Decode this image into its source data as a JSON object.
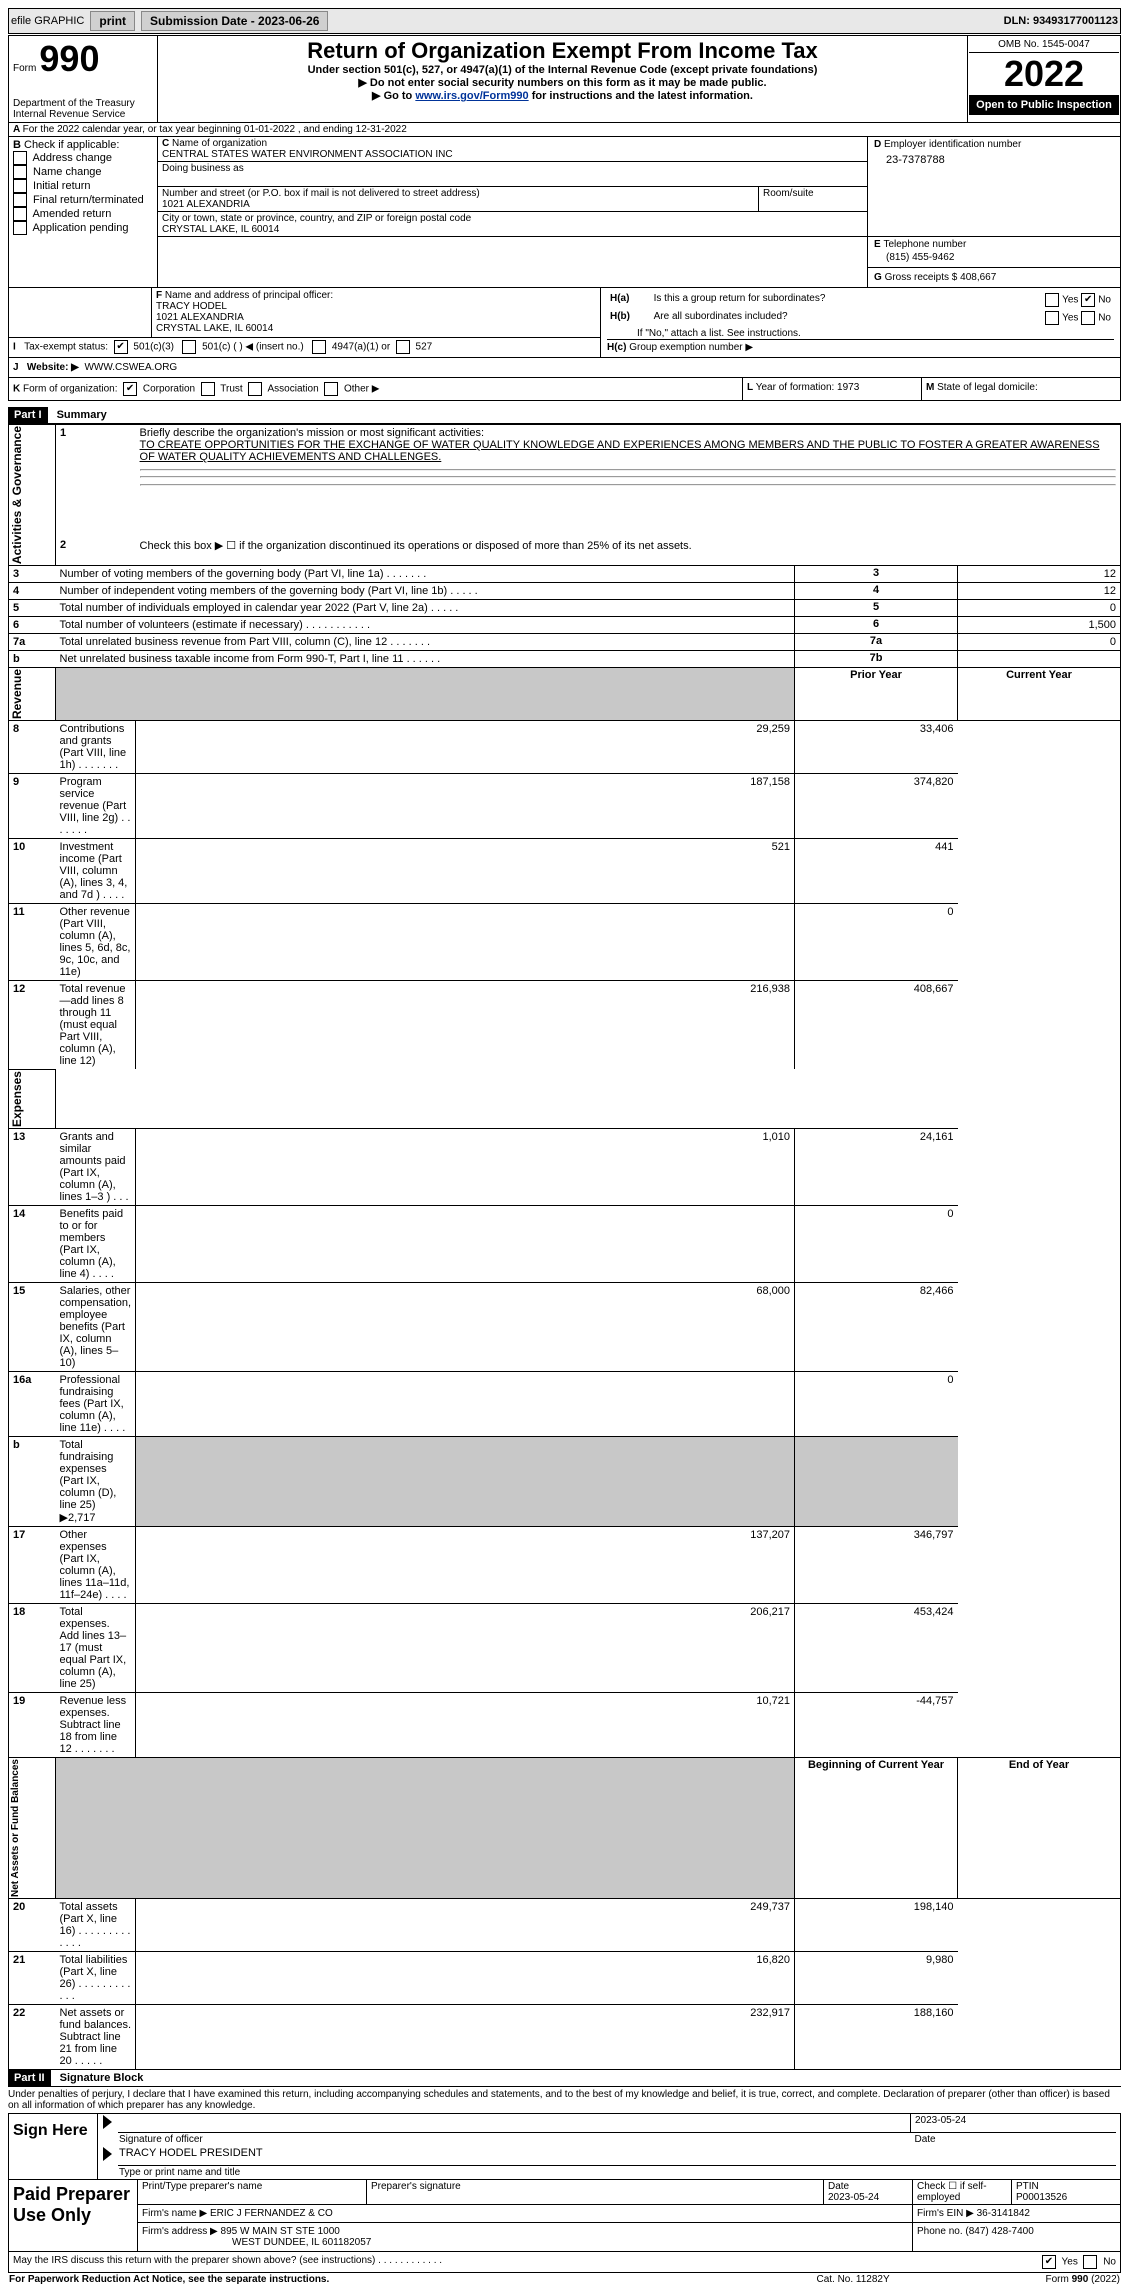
{
  "topbar": {
    "efile": "efile GRAPHIC",
    "print": "print",
    "sub_label": "Submission Date - 2023-06-26",
    "dln": "DLN: 93493177001123"
  },
  "header": {
    "form_small": "Form",
    "form_big": "990",
    "dept": "Department of the Treasury\nInternal Revenue Service",
    "title": "Return of Organization Exempt From Income Tax",
    "subtitle": "Under section 501(c), 527, or 4947(a)(1) of the Internal Revenue Code (except private foundations)",
    "warn": "Do not enter social security numbers on this form as it may be made public.",
    "goto_pre": "Go to ",
    "goto_link": "www.irs.gov/Form990",
    "goto_post": " for instructions and the latest information.",
    "omb": "OMB No. 1545-0047",
    "year": "2022",
    "open": "Open to Public Inspection"
  },
  "sectionA": {
    "for_year": "For the 2022 calendar year, or tax year beginning 01-01-2022    , and ending 12-31-2022",
    "check_label": "Check if applicable:",
    "checks": [
      "Address change",
      "Name change",
      "Initial return",
      "Final return/terminated",
      "Amended return",
      "Application pending"
    ],
    "c_name_lbl": "Name of organization",
    "c_name": "CENTRAL STATES WATER ENVIRONMENT ASSOCIATION INC",
    "dba_lbl": "Doing business as",
    "street_lbl": "Number and street (or P.O. box if mail is not delivered to street address)",
    "street": "1021 ALEXANDRIA",
    "room_lbl": "Room/suite",
    "city_lbl": "City or town, state or province, country, and ZIP or foreign postal code",
    "city": "CRYSTAL LAKE, IL  60014",
    "ein_lbl": "Employer identification number",
    "ein": "23-7378788",
    "phone_lbl": "Telephone number",
    "phone": "(815) 455-9462",
    "gross_lbl": "Gross receipts $",
    "gross": "408,667",
    "officer_lbl": "Name and address of principal officer:",
    "officer_name": "TRACY HODEL",
    "officer_addr1": "1021 ALEXANDRIA",
    "officer_addr2": "CRYSTAL LAKE, IL  60014",
    "ha_lbl": "Is this a group return for subordinates?",
    "hb_lbl": "Are all subordinates included?",
    "h_note": "If \"No,\" attach a list. See instructions.",
    "hc_lbl": "Group exemption number ▶",
    "yes": "Yes",
    "no": "No",
    "tax_status_lbl": "Tax-exempt status:",
    "s501c3": "501(c)(3)",
    "s501c": "501(c) (   ) ◀ (insert no.)",
    "s4947": "4947(a)(1) or",
    "s527": "527",
    "website_lbl": "Website: ▶",
    "website": "WWW.CSWEA.ORG",
    "form_of_org_lbl": "Form of organization:",
    "corp": "Corporation",
    "trust": "Trust",
    "assoc": "Association",
    "other": "Other ▶",
    "year_form_lbl": "Year of formation: 1973",
    "state_lbl": "State of legal domicile:"
  },
  "part1": {
    "part": "Part I",
    "title": "Summary",
    "line1_lbl": "Briefly describe the organization's mission or most significant activities:",
    "line1_text": "TO CREATE OPPORTUNITIES FOR THE EXCHANGE OF WATER QUALITY KNOWLEDGE AND EXPERIENCES AMONG MEMBERS AND THE PUBLIC TO FOSTER A GREATER AWARENESS OF WATER QUALITY ACHIEVEMENTS AND CHALLENGES.",
    "line2_lbl": "Check this box ▶ ☐ if the organization discontinued its operations or disposed of more than 25% of its net assets.",
    "rot_ag": "Activities & Governance",
    "rot_rev": "Revenue",
    "rot_exp": "Expenses",
    "rot_net": "Net Assets or Fund Balances",
    "rows_ag": [
      {
        "n": "3",
        "lbl": "Number of voting members of the governing body (Part VI, line 1a)   .   .   .   .   .   .   .",
        "box": "3",
        "v": "12"
      },
      {
        "n": "4",
        "lbl": "Number of independent voting members of the governing body (Part VI, line 1b)   .   .   .   .   .",
        "box": "4",
        "v": "12"
      },
      {
        "n": "5",
        "lbl": "Total number of individuals employed in calendar year 2022 (Part V, line 2a)   .   .   .   .   .",
        "box": "5",
        "v": "0"
      },
      {
        "n": "6",
        "lbl": "Total number of volunteers (estimate if necessary)    .   .   .   .   .   .   .   .   .   .   .",
        "box": "6",
        "v": "1,500"
      },
      {
        "n": "7a",
        "lbl": "Total unrelated business revenue from Part VIII, column (C), line 12   .   .   .   .   .   .   .",
        "box": "7a",
        "v": "0"
      },
      {
        "n": "b",
        "lbl": "Net unrelated business taxable income from Form 990-T, Part I, line 11   .   .   .   .   .   .",
        "box": "7b",
        "v": ""
      }
    ],
    "prior_hdr": "Prior Year",
    "current_hdr": "Current Year",
    "rows_rev": [
      {
        "n": "8",
        "lbl": "Contributions and grants (Part VIII, line 1h)   .   .   .   .   .   .   .",
        "p": "29,259",
        "c": "33,406"
      },
      {
        "n": "9",
        "lbl": "Program service revenue (Part VIII, line 2g)   .   .   .   .   .   .   .",
        "p": "187,158",
        "c": "374,820"
      },
      {
        "n": "10",
        "lbl": "Investment income (Part VIII, column (A), lines 3, 4, and 7d )   .   .   .   .",
        "p": "521",
        "c": "441"
      },
      {
        "n": "11",
        "lbl": "Other revenue (Part VIII, column (A), lines 5, 6d, 8c, 9c, 10c, and 11e)",
        "p": "",
        "c": "0"
      },
      {
        "n": "12",
        "lbl": "Total revenue—add lines 8 through 11 (must equal Part VIII, column (A), line 12)",
        "p": "216,938",
        "c": "408,667"
      }
    ],
    "rows_exp": [
      {
        "n": "13",
        "lbl": "Grants and similar amounts paid (Part IX, column (A), lines 1–3 )   .   .   .",
        "p": "1,010",
        "c": "24,161"
      },
      {
        "n": "14",
        "lbl": "Benefits paid to or for members (Part IX, column (A), line 4)   .   .   .   .",
        "p": "",
        "c": "0"
      },
      {
        "n": "15",
        "lbl": "Salaries, other compensation, employee benefits (Part IX, column (A), lines 5–10)",
        "p": "68,000",
        "c": "82,466"
      },
      {
        "n": "16a",
        "lbl": "Professional fundraising fees (Part IX, column (A), line 11e)   .   .   .   .",
        "p": "",
        "c": "0"
      },
      {
        "n": "b",
        "lbl": "Total fundraising expenses (Part IX, column (D), line 25) ▶2,717",
        "p": "GREY",
        "c": "GREY"
      },
      {
        "n": "17",
        "lbl": "Other expenses (Part IX, column (A), lines 11a–11d, 11f–24e)   .   .   .   .",
        "p": "137,207",
        "c": "346,797"
      },
      {
        "n": "18",
        "lbl": "Total expenses. Add lines 13–17 (must equal Part IX, column (A), line 25)",
        "p": "206,217",
        "c": "453,424"
      },
      {
        "n": "19",
        "lbl": "Revenue less expenses. Subtract line 18 from line 12   .   .   .   .   .   .   .",
        "p": "10,721",
        "c": "-44,757"
      }
    ],
    "begin_hdr": "Beginning of Current Year",
    "end_hdr": "End of Year",
    "rows_net": [
      {
        "n": "20",
        "lbl": "Total assets (Part X, line 16)   .   .   .   .   .   .   .   .   .   .   .   .   .",
        "p": "249,737",
        "c": "198,140"
      },
      {
        "n": "21",
        "lbl": "Total liabilities (Part X, line 26)   .   .   .   .   .   .   .   .   .   .   .   .",
        "p": "16,820",
        "c": "9,980"
      },
      {
        "n": "22",
        "lbl": "Net assets or fund balances. Subtract line 21 from line 20   .   .   .   .   .",
        "p": "232,917",
        "c": "188,160"
      }
    ]
  },
  "part2": {
    "part": "Part II",
    "title": "Signature Block",
    "decl": "Under penalties of perjury, I declare that I have examined this return, including accompanying schedules and statements, and to the best of my knowledge and belief, it is true, correct, and complete. Declaration of preparer (other than officer) is based on all information of which preparer has any knowledge.",
    "sign_here": "Sign Here",
    "sig_of_officer": "Signature of officer",
    "date": "Date",
    "officer_name": "TRACY HODEL  PRESIDENT",
    "type_or_print": "Type or print name and title",
    "sig_date": "2023-05-24",
    "paid": "Paid Preparer Use Only",
    "prep_name_lbl": "Print/Type preparer's name",
    "prep_sig_lbl": "Preparer's signature",
    "prep_date_lbl": "Date",
    "prep_date": "2023-05-24",
    "check_self": "Check ☐ if self-employed",
    "ptin_lbl": "PTIN",
    "ptin": "P00013526",
    "firm_name_lbl": "Firm's name     ▶",
    "firm_name": "ERIC J FERNANDEZ & CO",
    "firm_ein_lbl": "Firm's EIN ▶",
    "firm_ein": "36-3141842",
    "firm_addr_lbl": "Firm's address ▶",
    "firm_addr": "895 W MAIN ST STE 1000",
    "firm_city": "WEST DUNDEE, IL  601182057",
    "phone_lbl": "Phone no.",
    "phone": "(847) 428-7400",
    "may_irs": "May the IRS discuss this return with the preparer shown above? (see instructions)   .   .   .   .   .   .   .   .   .   .   .   .",
    "yes": "Yes",
    "no": "No"
  },
  "footer": {
    "pra": "For Paperwork Reduction Act Notice, see the separate instructions.",
    "cat": "Cat. No. 11282Y",
    "form": "Form 990 (2022)"
  }
}
